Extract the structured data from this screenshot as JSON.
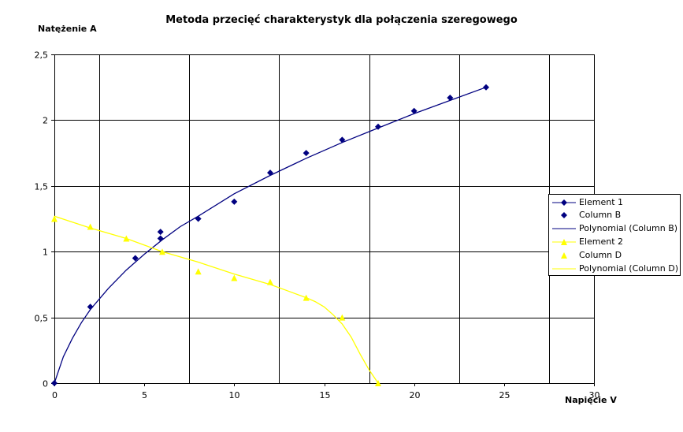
{
  "chart_data": {
    "type": "scatter",
    "title": "Metoda przecięć charakterystyk dla połączenia szeregowego",
    "xlabel": "Napięcie V",
    "ylabel": "Natężenie A",
    "xlim": [
      0,
      30
    ],
    "ylim": [
      0,
      2.5
    ],
    "xticks": [
      "0",
      "5",
      "10",
      "15",
      "20",
      "25",
      "30"
    ],
    "yticks": [
      "0",
      "0,5",
      "1",
      "1,5",
      "2",
      "2,5"
    ],
    "grid": true,
    "legend_position": "right",
    "series": [
      {
        "name": "Element 1",
        "kind": "line-marker",
        "marker": "diamond",
        "color": "#000080",
        "x": [
          0,
          2,
          4.5,
          5.9,
          5.9,
          8,
          10,
          12,
          14,
          16,
          18,
          20,
          22,
          24
        ],
        "y": [
          0,
          0.58,
          0.95,
          1.1,
          1.15,
          1.25,
          1.38,
          1.6,
          1.75,
          1.85,
          1.95,
          2.07,
          2.17,
          2.25
        ]
      },
      {
        "name": "Column B",
        "kind": "marker",
        "marker": "diamond",
        "color": "#000080",
        "x": [
          0,
          2,
          4.5,
          5.9,
          5.9,
          8,
          10,
          12,
          14,
          16,
          18,
          20,
          22,
          24
        ],
        "y": [
          0,
          0.58,
          0.95,
          1.1,
          1.15,
          1.25,
          1.38,
          1.6,
          1.75,
          1.85,
          1.95,
          2.07,
          2.17,
          2.25
        ]
      },
      {
        "name": "Polynomial (Column B)",
        "kind": "trendline",
        "color": "#000080",
        "x": [
          0,
          0.5,
          1,
          1.5,
          2,
          3,
          4,
          5,
          6,
          7,
          8,
          10,
          12,
          14,
          16,
          18,
          20,
          22,
          24
        ],
        "y": [
          0,
          0.2,
          0.34,
          0.46,
          0.56,
          0.72,
          0.86,
          0.98,
          1.09,
          1.19,
          1.27,
          1.44,
          1.58,
          1.71,
          1.83,
          1.94,
          2.05,
          2.15,
          2.25
        ]
      },
      {
        "name": "Element 2",
        "kind": "line-marker",
        "marker": "triangle",
        "color": "#ffff00",
        "x": [
          0,
          2,
          4,
          6,
          8,
          10,
          12,
          14,
          16,
          18
        ],
        "y": [
          1.25,
          1.19,
          1.1,
          1.0,
          0.85,
          0.8,
          0.77,
          0.65,
          0.5,
          0
        ]
      },
      {
        "name": "Column D",
        "kind": "marker",
        "marker": "triangle",
        "color": "#ffff00",
        "x": [
          0,
          2,
          4,
          6,
          8,
          10,
          12,
          14,
          16,
          18
        ],
        "y": [
          1.25,
          1.19,
          1.1,
          1.0,
          0.85,
          0.8,
          0.77,
          0.65,
          0.5,
          0
        ]
      },
      {
        "name": "Polynomial (Column D)",
        "kind": "trendline",
        "color": "#ffff00",
        "x": [
          0,
          2,
          4,
          6,
          8,
          10,
          12,
          13,
          14,
          14.5,
          15,
          15.5,
          16,
          16.5,
          17,
          17.5,
          18
        ],
        "y": [
          1.27,
          1.18,
          1.1,
          1.0,
          0.92,
          0.83,
          0.75,
          0.7,
          0.65,
          0.62,
          0.58,
          0.52,
          0.45,
          0.35,
          0.22,
          0.1,
          0
        ]
      }
    ]
  }
}
